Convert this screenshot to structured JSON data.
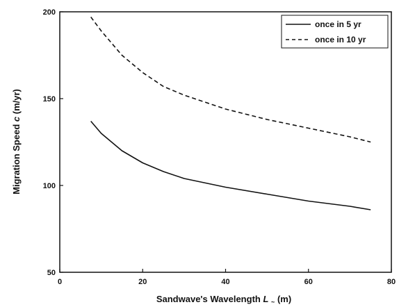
{
  "chart_data": {
    "type": "line",
    "title": "",
    "xlabel": "Sandwave's Wavelength",
    "xlabel_var": "L",
    "xlabel_sub": "~",
    "xlabel_unit": "(m)",
    "ylabel": "Migration Speed",
    "ylabel_var": "c",
    "ylabel_unit": "(m/yr)",
    "xlim": [
      0,
      80
    ],
    "ylim": [
      50,
      200
    ],
    "xticks": [
      "0",
      "20",
      "40",
      "60",
      "80"
    ],
    "yticks": [
      "50",
      "100",
      "150",
      "200"
    ],
    "grid": false,
    "legend_position": "top-right",
    "series": [
      {
        "name": "once in 5 yr",
        "style": "solid",
        "x": [
          7.5,
          10,
          15,
          20,
          25,
          30,
          40,
          50,
          60,
          70,
          75
        ],
        "y": [
          137,
          130,
          120,
          113,
          108,
          104,
          99,
          95,
          91,
          88,
          86
        ]
      },
      {
        "name": "once in 10 yr",
        "style": "dashed",
        "x": [
          7.5,
          10,
          15,
          20,
          25,
          30,
          40,
          50,
          60,
          70,
          75
        ],
        "y": [
          197,
          189,
          175,
          165,
          157,
          152,
          144,
          138,
          133,
          128,
          125
        ]
      }
    ]
  }
}
